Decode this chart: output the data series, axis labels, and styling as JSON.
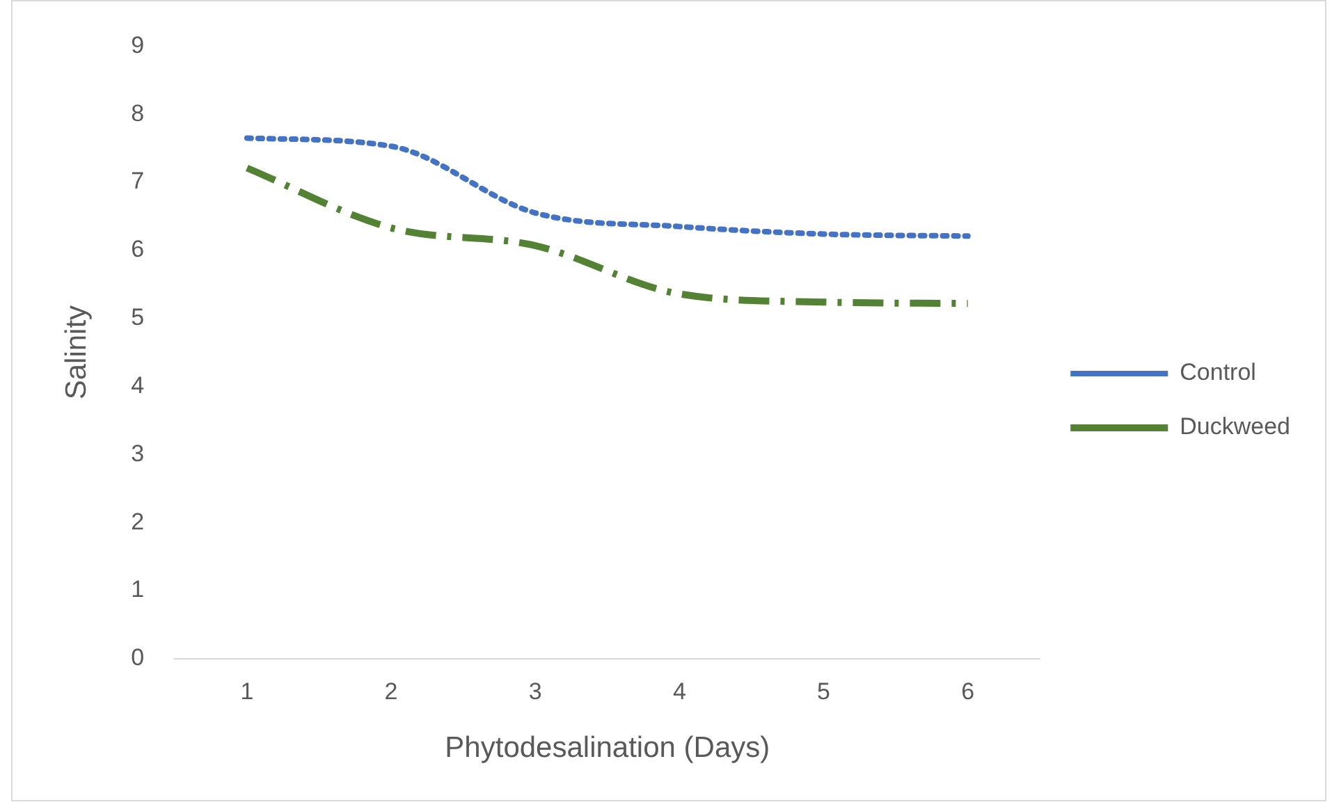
{
  "chart_data": {
    "type": "line",
    "xlabel": "Phytodesalination (Days)",
    "ylabel": "Salinity",
    "categories": [
      "1",
      "2",
      "3",
      "4",
      "5",
      "6"
    ],
    "series": [
      {
        "name": "Control",
        "color": "#4472c4",
        "line_style": "dotted",
        "values": [
          7.65,
          7.53,
          6.55,
          6.35,
          6.24,
          6.21
        ]
      },
      {
        "name": "Duckweed",
        "color": "#548235",
        "line_style": "dashed",
        "values": [
          7.21,
          6.33,
          6.07,
          5.36,
          5.24,
          5.22
        ]
      }
    ],
    "ylim": [
      0,
      9
    ],
    "yticks": [
      0,
      1,
      2,
      3,
      4,
      5,
      6,
      7,
      8,
      9
    ],
    "grid": false,
    "legend": "right",
    "marker": "none"
  }
}
